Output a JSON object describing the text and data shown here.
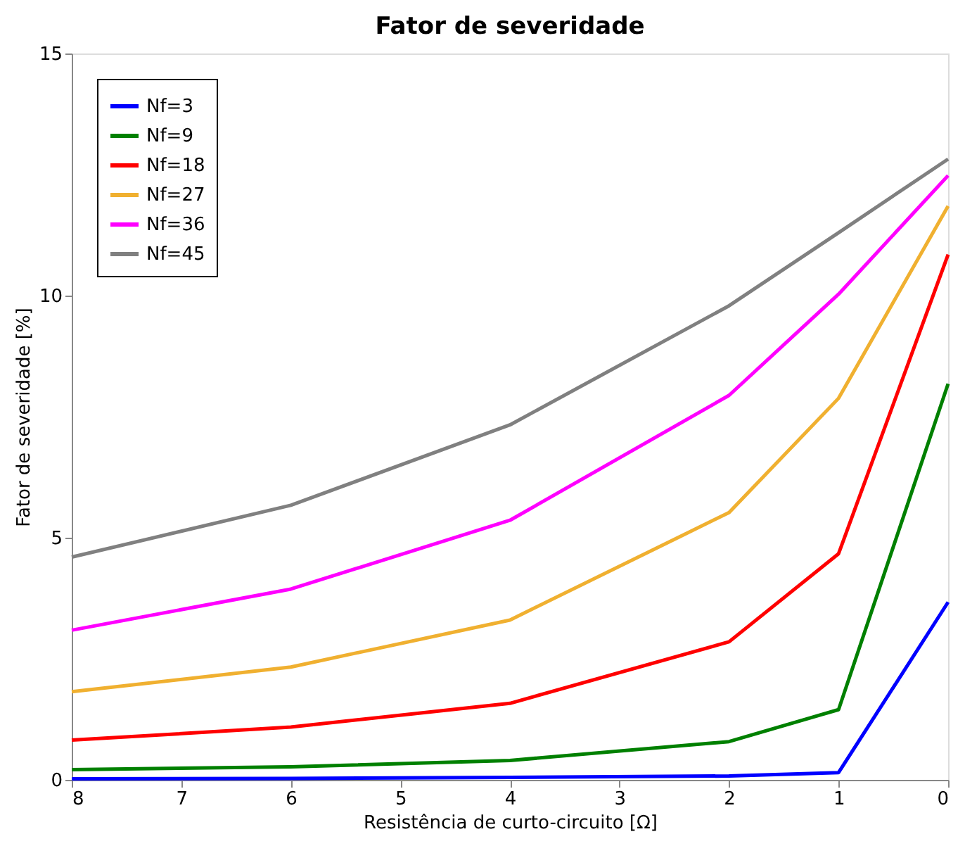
{
  "chart_data": {
    "type": "line",
    "title": "Fator de severidade",
    "xlabel": "Resistência de curto-circuito [Ω]",
    "ylabel": "Fator de severidade [%]",
    "x": [
      8,
      6,
      4,
      2,
      1,
      0
    ],
    "series": [
      {
        "name": "Nf=3",
        "color": "#0000ff",
        "values": [
          0.02,
          0.03,
          0.05,
          0.08,
          0.15,
          3.67
        ]
      },
      {
        "name": "Nf=9",
        "color": "#008000",
        "values": [
          0.21,
          0.27,
          0.4,
          0.79,
          1.45,
          8.18
        ]
      },
      {
        "name": "Nf=18",
        "color": "#ff0000",
        "values": [
          0.82,
          1.09,
          1.58,
          2.85,
          4.67,
          10.85
        ]
      },
      {
        "name": "Nf=27",
        "color": "#f0b030",
        "values": [
          1.82,
          2.33,
          3.3,
          5.52,
          7.88,
          11.85
        ]
      },
      {
        "name": "Nf=36",
        "color": "#ff00ff",
        "values": [
          3.09,
          3.94,
          5.36,
          7.94,
          10.03,
          12.48
        ]
      },
      {
        "name": "Nf=45",
        "color": "#808080",
        "values": [
          4.6,
          5.67,
          7.33,
          9.79,
          11.3,
          12.82
        ]
      }
    ],
    "xlim": [
      8,
      0
    ],
    "xticks": [
      8,
      7,
      6,
      5,
      4,
      3,
      2,
      1,
      0
    ],
    "ylim": [
      0,
      15
    ],
    "yticks": [
      0,
      5,
      10,
      15
    ],
    "legend": "top left",
    "grid": false,
    "marker": "none",
    "line_style": "solid"
  }
}
